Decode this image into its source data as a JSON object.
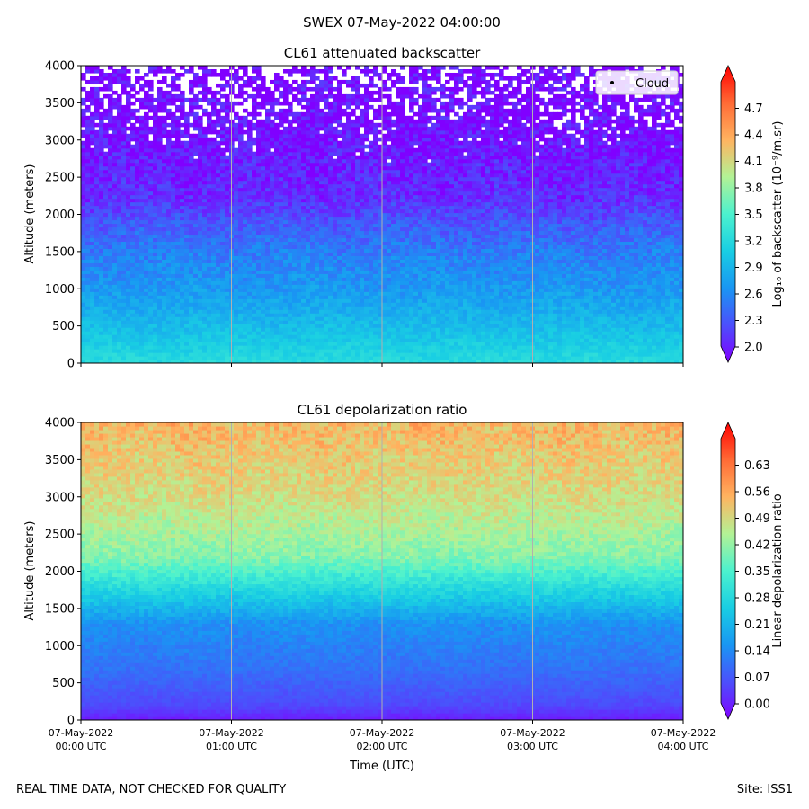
{
  "figure": {
    "suptitle": "SWEX 07-May-2022 04:00:00",
    "footer_left": "REAL TIME DATA, NOT CHECKED FOR QUALITY",
    "footer_right": "Site: ISS1",
    "xlabel": "Time (UTC)",
    "x_ticks": [
      {
        "line1": "07-May-2022",
        "line2": "00:00 UTC"
      },
      {
        "line1": "07-May-2022",
        "line2": "01:00 UTC"
      },
      {
        "line1": "07-May-2022",
        "line2": "02:00 UTC"
      },
      {
        "line1": "07-May-2022",
        "line2": "03:00 UTC"
      },
      {
        "line1": "07-May-2022",
        "line2": "04:00 UTC"
      }
    ]
  },
  "chart_data": [
    {
      "type": "heatmap",
      "title": "CL61 attenuated backscatter",
      "ylabel": "Altitude (meters)",
      "ylim": [
        0,
        4000
      ],
      "y_ticks": [
        0,
        500,
        1000,
        1500,
        2000,
        2500,
        3000,
        3500,
        4000
      ],
      "x_range_hours": [
        0,
        4
      ],
      "legend": {
        "label": "Cloud",
        "marker": "dot",
        "placement": "top-right"
      },
      "colorbar": {
        "label": "Log₁₀ of backscatter (10⁻⁹/m.sr)",
        "range": [
          2.0,
          5.0
        ],
        "ticks": [
          "2.0",
          "2.3",
          "2.6",
          "2.9",
          "3.2",
          "3.5",
          "3.8",
          "4.1",
          "4.4",
          "4.7"
        ],
        "colormap": "rainbow",
        "extend": "both"
      },
      "profile": [
        {
          "altitude": 0,
          "value": 3.25
        },
        {
          "altitude": 300,
          "value": 3.1
        },
        {
          "altitude": 600,
          "value": 2.95
        },
        {
          "altitude": 1000,
          "value": 2.78
        },
        {
          "altitude": 1500,
          "value": 2.62
        },
        {
          "altitude": 1900,
          "value": 2.42
        },
        {
          "altitude": 2200,
          "value": 2.22
        },
        {
          "altitude": 3000,
          "value": 2.08
        },
        {
          "altitude": 4000,
          "value": 2.0
        }
      ],
      "gaps_above_altitude": 2700
    },
    {
      "type": "heatmap",
      "title": "CL61 depolarization ratio",
      "ylabel": "Altitude (meters)",
      "ylim": [
        0,
        4000
      ],
      "y_ticks": [
        0,
        500,
        1000,
        1500,
        2000,
        2500,
        3000,
        3500,
        4000
      ],
      "x_range_hours": [
        0,
        4
      ],
      "colorbar": {
        "label": "Linear depolarization ratio",
        "range": [
          0.0,
          0.7
        ],
        "ticks": [
          "0.00",
          "0.07",
          "0.14",
          "0.21",
          "0.28",
          "0.35",
          "0.42",
          "0.49",
          "0.56",
          "0.63"
        ],
        "colormap": "rainbow",
        "extend": "both"
      },
      "profile": [
        {
          "altitude": 0,
          "value": 0.03
        },
        {
          "altitude": 200,
          "value": 0.08
        },
        {
          "altitude": 700,
          "value": 0.13
        },
        {
          "altitude": 1300,
          "value": 0.17
        },
        {
          "altitude": 1700,
          "value": 0.27
        },
        {
          "altitude": 2200,
          "value": 0.4
        },
        {
          "altitude": 3000,
          "value": 0.47
        },
        {
          "altitude": 4000,
          "value": 0.52
        }
      ]
    }
  ]
}
